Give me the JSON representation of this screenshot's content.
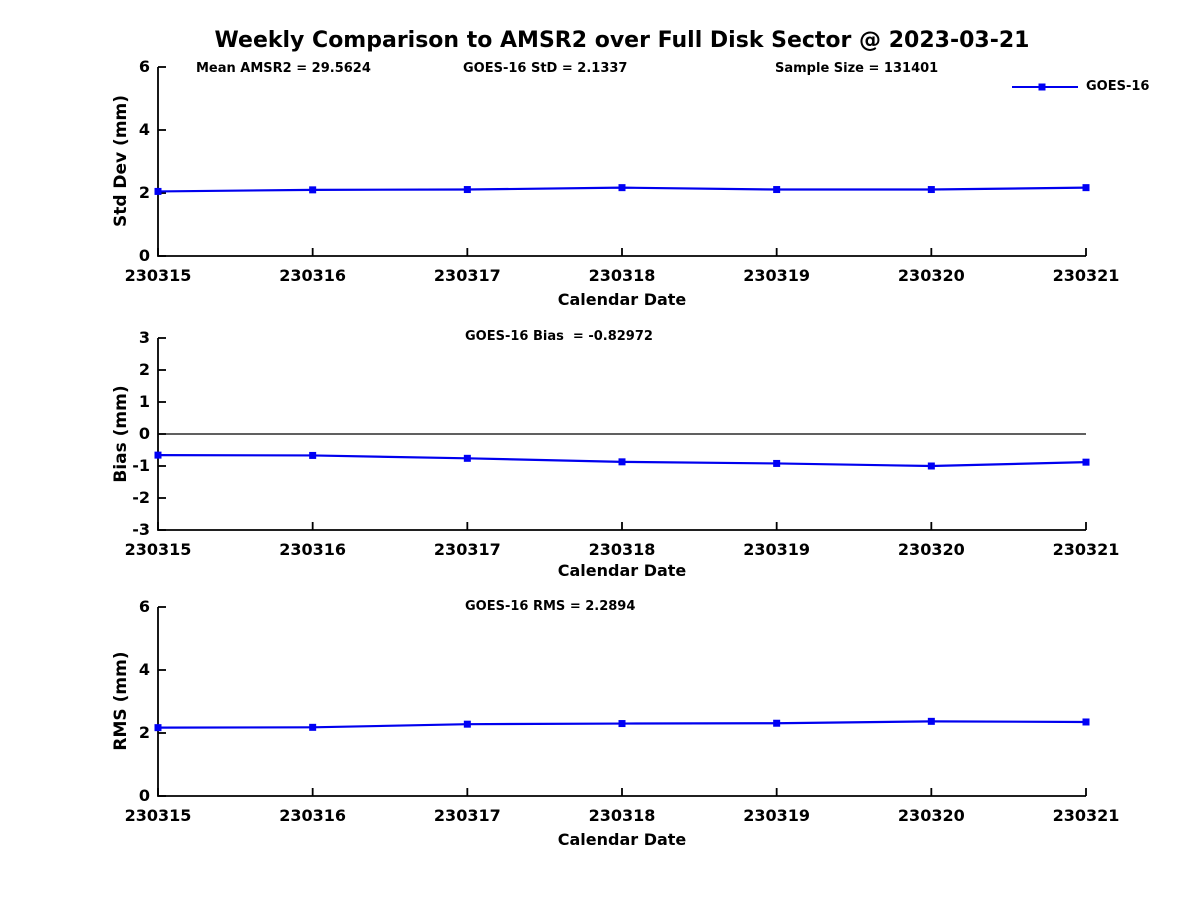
{
  "title": "Weekly Comparison to AMSR2 over Full Disk Sector @ 2023-03-21",
  "legend": {
    "label": "GOES-16",
    "color": "#0000EE"
  },
  "colors": {
    "line": "#0000EE",
    "marker": "#0000F5",
    "axis": "#000000",
    "text": "#000000"
  },
  "categories": [
    "230315",
    "230316",
    "230317",
    "230318",
    "230319",
    "230320",
    "230321"
  ],
  "chart_data": [
    {
      "type": "line",
      "title_annotations": [
        {
          "text": "Mean AMSR2 = 29.5624"
        },
        {
          "text": "GOES-16 StD = 2.1337"
        },
        {
          "text": "Sample Size = 131401"
        }
      ],
      "categories": [
        "230315",
        "230316",
        "230317",
        "230318",
        "230319",
        "230320",
        "230321"
      ],
      "series": [
        {
          "name": "GOES-16",
          "values": [
            2.05,
            2.1,
            2.11,
            2.17,
            2.11,
            2.11,
            2.17
          ]
        }
      ],
      "xlabel": "Calendar Date",
      "ylabel": "Std Dev (mm)",
      "ylim": [
        0,
        6
      ],
      "yticks": [
        0,
        2,
        4,
        6
      ],
      "zero_line": false,
      "legend_position": "upper-right-outside",
      "grid": false
    },
    {
      "type": "line",
      "title_annotations": [
        {
          "text": "GOES-16 Bias  = -0.82972"
        }
      ],
      "categories": [
        "230315",
        "230316",
        "230317",
        "230318",
        "230319",
        "230320",
        "230321"
      ],
      "series": [
        {
          "name": "GOES-16",
          "values": [
            -0.66,
            -0.67,
            -0.76,
            -0.87,
            -0.92,
            -1.0,
            -0.88
          ]
        }
      ],
      "xlabel": "Calendar Date",
      "ylabel": "Bias (mm)",
      "ylim": [
        -3,
        3
      ],
      "yticks": [
        -3,
        -2,
        -1,
        0,
        1,
        2,
        3
      ],
      "zero_line": true,
      "grid": false
    },
    {
      "type": "line",
      "title_annotations": [
        {
          "text": "GOES-16 RMS = 2.2894"
        }
      ],
      "categories": [
        "230315",
        "230316",
        "230317",
        "230318",
        "230319",
        "230320",
        "230321"
      ],
      "series": [
        {
          "name": "GOES-16",
          "values": [
            2.17,
            2.18,
            2.28,
            2.3,
            2.31,
            2.37,
            2.35
          ]
        }
      ],
      "xlabel": "Calendar Date",
      "ylabel": "RMS (mm)",
      "ylim": [
        0,
        6
      ],
      "yticks": [
        0,
        2,
        4,
        6
      ],
      "zero_line": false,
      "grid": false
    }
  ]
}
